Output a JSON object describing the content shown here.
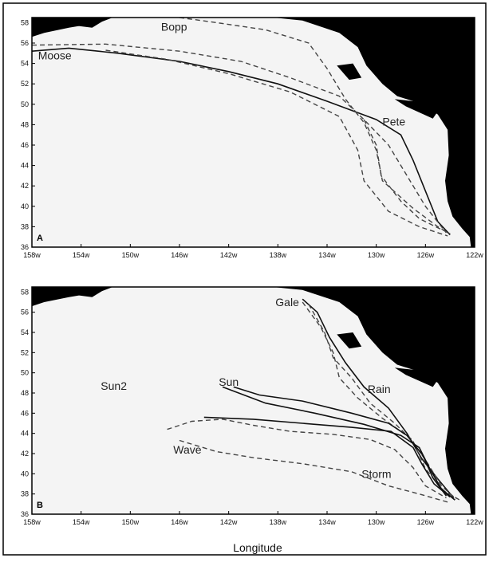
{
  "figure": {
    "xlabel": "Longitude",
    "x_ticks": [
      "158w",
      "154w",
      "150w",
      "146w",
      "142w",
      "138w",
      "134w",
      "130w",
      "126w",
      "122w"
    ],
    "y_ticks": [
      "58",
      "56",
      "54",
      "52",
      "50",
      "48",
      "46",
      "44",
      "42",
      "40",
      "38",
      "36"
    ],
    "colors": {
      "land": "#000000",
      "ocean": "#f4f4f4",
      "track_solid": "#111111",
      "track_dashed": "#444444",
      "frame": "#000000"
    }
  },
  "panels": [
    {
      "letter": "A",
      "tracks": [
        {
          "name": "Moose",
          "style": "solid",
          "points": [
            [
              -158,
              55.2
            ],
            [
              -155,
              55.5
            ],
            [
              -151,
              55.0
            ],
            [
              -146,
              54.2
            ],
            [
              -142,
              53.2
            ],
            [
              -138,
              52.0
            ],
            [
              -134,
              50.3
            ],
            [
              -130,
              48.5
            ],
            [
              -128,
              47.0
            ],
            [
              -127,
              44.5
            ],
            [
              -126,
              41.5
            ],
            [
              -125,
              38.5
            ],
            [
              -124,
              37.2
            ]
          ]
        },
        {
          "name": "Bopp",
          "style": "dashed",
          "points": [
            [
              -146,
              58.5
            ],
            [
              -143,
              58.0
            ],
            [
              -139,
              57.3
            ],
            [
              -135.5,
              56.0
            ],
            [
              -134,
              53.5
            ],
            [
              -132.5,
              50.5
            ],
            [
              -131,
              48.2
            ],
            [
              -130,
              45.5
            ],
            [
              -129.5,
              42.5
            ],
            [
              -127,
              39.8
            ],
            [
              -125,
              38.0
            ],
            [
              -124,
              37.3
            ]
          ]
        },
        {
          "name": "",
          "style": "dashed",
          "points": [
            [
              -158,
              55.8
            ],
            [
              -152,
              55.9
            ],
            [
              -146,
              55.2
            ],
            [
              -141,
              54.2
            ],
            [
              -137,
              52.6
            ],
            [
              -133,
              50.8
            ],
            [
              -131,
              48.5
            ],
            [
              -129,
              46.0
            ],
            [
              -127.5,
              43.0
            ],
            [
              -126,
              40.0
            ],
            [
              -124.3,
              37.4
            ]
          ]
        },
        {
          "name": "Pete",
          "style": "dashed",
          "points": [
            [
              -152,
              55.3
            ],
            [
              -147,
              54.4
            ],
            [
              -142,
              53.0
            ],
            [
              -137,
              51.2
            ],
            [
              -133,
              48.8
            ],
            [
              -131.5,
              45.5
            ],
            [
              -131,
              42.5
            ],
            [
              -129,
              39.5
            ],
            [
              -126.5,
              38.0
            ],
            [
              -124.2,
              37.1
            ]
          ]
        },
        {
          "name": "",
          "style": "dashed",
          "points": [
            [
              -131,
              48.5
            ],
            [
              -130,
              46.0
            ],
            [
              -129.6,
              43.0
            ],
            [
              -128,
              40.5
            ],
            [
              -126.5,
              38.8
            ],
            [
              -124.5,
              37.6
            ]
          ]
        }
      ],
      "labels": [
        {
          "text": "Bopp",
          "lon": -147.5,
          "lat": 57.2
        },
        {
          "text": "Moose",
          "lon": -157.5,
          "lat": 54.4
        },
        {
          "text": "Pete",
          "lon": -129.5,
          "lat": 47.9
        }
      ]
    },
    {
      "letter": "B",
      "tracks": [
        {
          "name": "Gale",
          "style": "solid",
          "points": [
            [
              -136,
              57.3
            ],
            [
              -134.8,
              56.0
            ],
            [
              -133.8,
              53.5
            ],
            [
              -132.5,
              51.0
            ],
            [
              -131,
              48.6
            ],
            [
              -129,
              46.5
            ],
            [
              -127.5,
              44.0
            ],
            [
              -126.3,
              41.5
            ],
            [
              -125,
              39.5
            ],
            [
              -123.7,
              37.6
            ]
          ]
        },
        {
          "name": "",
          "style": "dashed",
          "points": [
            [
              -136,
              57.0
            ],
            [
              -134.5,
              54.5
            ],
            [
              -133.5,
              52.0
            ],
            [
              -133,
              49.5
            ],
            [
              -131.5,
              47.5
            ],
            [
              -129.5,
              45.5
            ],
            [
              -127.2,
              43.5
            ],
            [
              -125.8,
              41.0
            ],
            [
              -124.7,
              38.8
            ],
            [
              -123.5,
              37.5
            ]
          ]
        },
        {
          "name": "Rain",
          "style": "dashed",
          "points": [
            [
              -135.5,
              56.8
            ],
            [
              -134.2,
              54.0
            ],
            [
              -133.5,
              51.5
            ],
            [
              -132,
              49.5
            ],
            [
              -130.5,
              47.0
            ],
            [
              -128.5,
              45.0
            ],
            [
              -127,
              43.2
            ],
            [
              -126,
              40.5
            ],
            [
              -124.5,
              38.3
            ],
            [
              -123.2,
              37.4
            ]
          ]
        },
        {
          "name": "Sun",
          "style": "solid",
          "points": [
            [
              -141.6,
              48.6
            ],
            [
              -139.5,
              47.8
            ],
            [
              -136,
              47.2
            ],
            [
              -132,
              46.0
            ],
            [
              -129,
              45.0
            ],
            [
              -127.5,
              43.8
            ],
            [
              -126.2,
              41.8
            ],
            [
              -125.4,
              39.6
            ],
            [
              -124.3,
              37.8
            ]
          ]
        },
        {
          "name": "",
          "style": "solid",
          "points": [
            [
              -142.5,
              48.6
            ],
            [
              -139,
              47.0
            ],
            [
              -135,
              46.0
            ],
            [
              -131,
              44.9
            ],
            [
              -128,
              43.8
            ],
            [
              -126.5,
              42.6
            ],
            [
              -125.6,
              40.4
            ],
            [
              -124.7,
              38.5
            ],
            [
              -123.6,
              37.4
            ]
          ]
        },
        {
          "name": "Storm",
          "style": "solid",
          "points": [
            [
              -144,
              45.6
            ],
            [
              -140,
              45.4
            ],
            [
              -136,
              45.0
            ],
            [
              -132,
              44.6
            ],
            [
              -128.8,
              44.2
            ],
            [
              -127,
              42.6
            ],
            [
              -126.3,
              41.0
            ],
            [
              -125.3,
              39.0
            ],
            [
              -124,
              37.7
            ]
          ]
        },
        {
          "name": "Wave",
          "style": "dashed",
          "points": [
            [
              -147,
              44.4
            ],
            [
              -145,
              45.2
            ],
            [
              -142.5,
              45.4
            ],
            [
              -140,
              44.8
            ],
            [
              -137,
              44.2
            ],
            [
              -133.5,
              43.9
            ],
            [
              -130.5,
              43.4
            ],
            [
              -128.5,
              42.4
            ],
            [
              -127,
              40.6
            ],
            [
              -126,
              38.8
            ],
            [
              -124.3,
              37.6
            ]
          ]
        },
        {
          "name": "",
          "style": "dashed",
          "points": [
            [
              -146,
              43.3
            ],
            [
              -143,
              42.2
            ],
            [
              -140,
              41.6
            ],
            [
              -136,
              41.0
            ],
            [
              -132,
              40.2
            ],
            [
              -129,
              38.8
            ],
            [
              -126.5,
              38.0
            ],
            [
              -124.2,
              37.2
            ]
          ]
        }
      ],
      "labels": [
        {
          "text": "Gale",
          "lon": -138.2,
          "lat": 56.6
        },
        {
          "text": "Sun2",
          "lon": -152.4,
          "lat": 48.3
        },
        {
          "text": "Sun",
          "lon": -142.8,
          "lat": 48.7
        },
        {
          "text": "Rain",
          "lon": -130.7,
          "lat": 48.0
        },
        {
          "text": "Wave",
          "lon": -146.5,
          "lat": 42.0
        },
        {
          "text": "Storm",
          "lon": -131.2,
          "lat": 39.6
        }
      ]
    }
  ]
}
